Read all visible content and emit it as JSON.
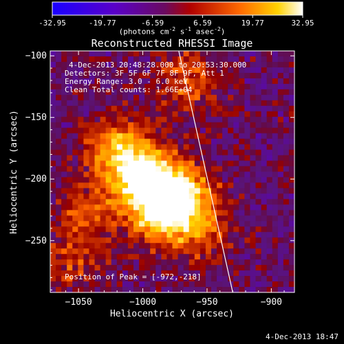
{
  "colorbar": {
    "ticks": [
      "-32.95",
      "-19.77",
      "-6.59",
      "6.59",
      "19.77",
      "32.95"
    ],
    "unit_prefix": "(photons cm",
    "unit_exp1": "-2",
    "unit_mid": " s",
    "unit_exp2": "-1",
    "unit_mid2": " asec",
    "unit_exp3": "-2",
    "unit_suffix": ")"
  },
  "footer": {
    "timestamp": "4-Dec-2013 18:47"
  },
  "chart_data": {
    "type": "heatmap",
    "title": "Reconstructed RHESSI Image",
    "xlabel": "Heliocentric X (arcsec)",
    "ylabel": "Heliocentric Y (arcsec)",
    "xlim": [
      -1072,
      -882
    ],
    "ylim": [
      -292,
      -96
    ],
    "xticks": [
      -1050,
      -1000,
      -950,
      -900
    ],
    "yticks": [
      -100,
      -150,
      -200,
      -250
    ],
    "colormap": "hot (black-purple-red-orange-yellow-white)",
    "color_range": [
      -32.95,
      32.95
    ],
    "annotations": [
      "4-Dec-2013 20:48:28.000 to 20:53:30.000",
      "Detectors: 3F 5F 6F 7F 8F 9F, Att 1",
      "Energy Range: 3.0 - 6.0 keV",
      "Clean    Total counts: 1.66E+04"
    ],
    "peak_label": "Position of Peak = [-972,-218]",
    "peak": {
      "x": -972,
      "y": -218
    },
    "limb_line": {
      "x": [
        -972,
        -930
      ],
      "y": [
        -96,
        -292
      ]
    },
    "sources": [
      {
        "x": -1000,
        "y": -200,
        "peak_value": 32.95
      },
      {
        "x": -970,
        "y": -215,
        "peak_value": 30
      },
      {
        "x": -1020,
        "y": -175,
        "peak_value": 22
      },
      {
        "x": -985,
        "y": -230,
        "peak_value": 24
      },
      {
        "x": -1045,
        "y": -230,
        "peak_value": 14
      },
      {
        "x": -965,
        "y": -120,
        "peak_value": 15
      },
      {
        "x": -950,
        "y": -250,
        "peak_value": 10
      },
      {
        "x": -1055,
        "y": -270,
        "peak_value": 10
      }
    ]
  }
}
